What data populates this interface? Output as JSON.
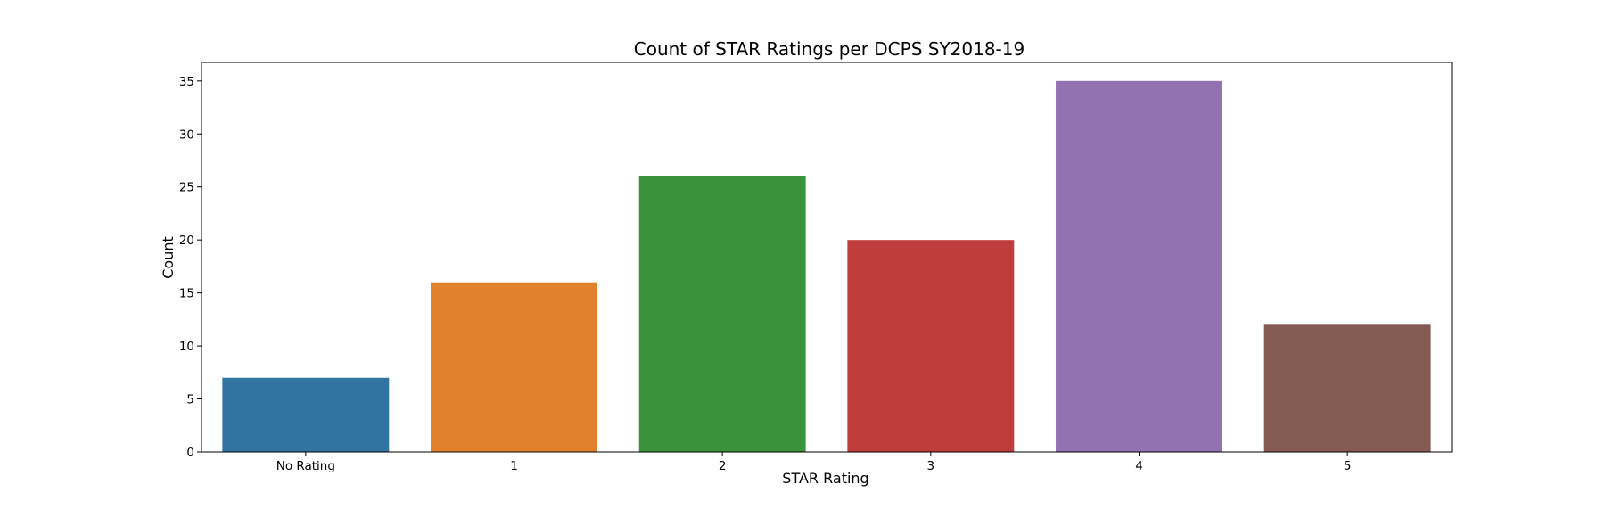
{
  "chart_data": {
    "type": "bar",
    "title": "Count of STAR Ratings per DCPS SY2018-19",
    "xlabel": "STAR Rating",
    "ylabel": "Count",
    "categories": [
      "No Rating",
      "1",
      "2",
      "3",
      "4",
      "5"
    ],
    "values": [
      7,
      16,
      26,
      20,
      35,
      12
    ],
    "ylim": [
      0,
      36.75
    ],
    "yticks": [
      0,
      5,
      10,
      15,
      20,
      25,
      30,
      35
    ],
    "ytick_labels": [
      "0",
      "5",
      "10",
      "15",
      "20",
      "25",
      "30",
      "35"
    ],
    "colors": [
      "#3274a1",
      "#e1812c",
      "#3a923a",
      "#c03d3e",
      "#9372b2",
      "#845b53"
    ],
    "grid": false,
    "legend": "none"
  }
}
